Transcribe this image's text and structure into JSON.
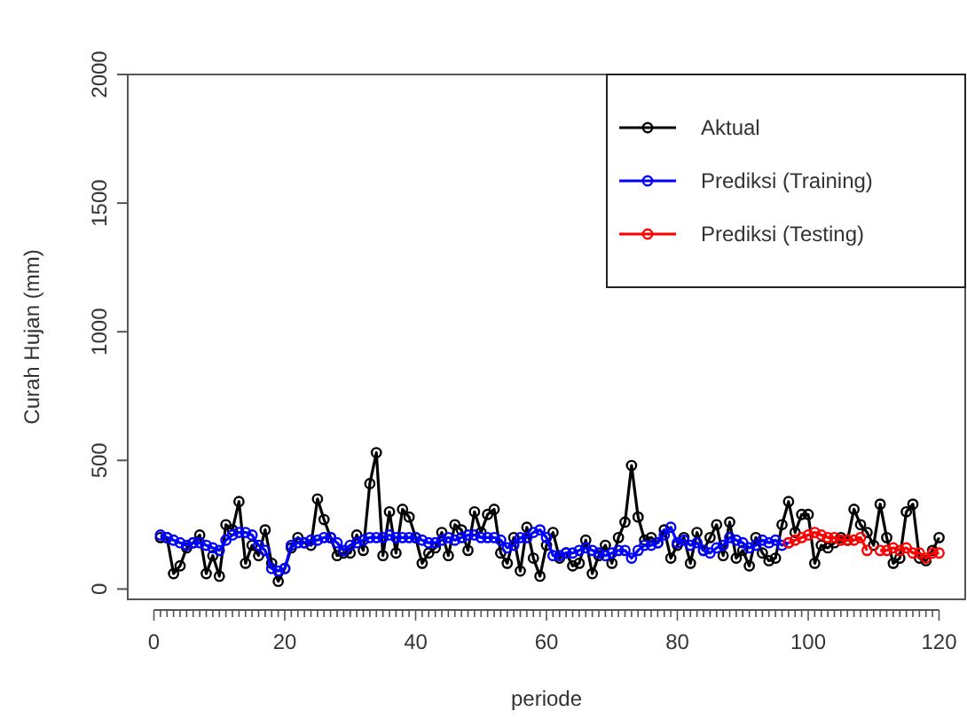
{
  "chart_data": {
    "type": "line",
    "xlabel": "periode",
    "ylabel": "Curah Hujan (mm)",
    "xlim": [
      -4,
      124
    ],
    "ylim": [
      -40,
      2000
    ],
    "yticks": [
      0,
      500,
      1000,
      1500,
      2000
    ],
    "xticks": [
      0,
      {
        "value": 1,
        "label": null
      },
      {
        "value": 2,
        "label": null
      },
      {
        "value": 3,
        "label": null
      },
      {
        "value": 4,
        "label": null
      },
      {
        "value": 5,
        "label": null
      },
      {
        "value": 6,
        "label": null
      },
      {
        "value": 7,
        "label": null
      },
      {
        "value": 8,
        "label": null
      },
      {
        "value": 9,
        "label": null
      },
      {
        "value": 10,
        "label": null
      },
      {
        "value": 11,
        "label": null
      },
      {
        "value": 12,
        "label": null
      },
      {
        "value": 13,
        "label": null
      },
      {
        "value": 14,
        "label": null
      },
      {
        "value": 15,
        "label": null
      },
      {
        "value": 16,
        "label": null
      },
      {
        "value": 17,
        "label": null
      },
      {
        "value": 18,
        "label": null
      },
      {
        "value": 19,
        "label": null
      },
      20,
      {
        "value": 21,
        "label": null
      },
      {
        "value": 22,
        "label": null
      },
      {
        "value": 23,
        "label": null
      },
      {
        "value": 24,
        "label": null
      },
      {
        "value": 25,
        "label": null
      },
      {
        "value": 26,
        "label": null
      },
      {
        "value": 27,
        "label": null
      },
      {
        "value": 28,
        "label": null
      },
      {
        "value": 29,
        "label": null
      },
      {
        "value": 30,
        "label": null
      },
      {
        "value": 31,
        "label": null
      },
      {
        "value": 32,
        "label": null
      },
      {
        "value": 33,
        "label": null
      },
      {
        "value": 34,
        "label": null
      },
      {
        "value": 35,
        "label": null
      },
      {
        "value": 36,
        "label": null
      },
      {
        "value": 37,
        "label": null
      },
      {
        "value": 38,
        "label": null
      },
      {
        "value": 39,
        "label": null
      },
      40,
      {
        "value": 41,
        "label": null
      },
      {
        "value": 42,
        "label": null
      },
      {
        "value": 43,
        "label": null
      },
      {
        "value": 44,
        "label": null
      },
      {
        "value": 45,
        "label": null
      },
      {
        "value": 46,
        "label": null
      },
      {
        "value": 47,
        "label": null
      },
      {
        "value": 48,
        "label": null
      },
      {
        "value": 49,
        "label": null
      },
      {
        "value": 50,
        "label": null
      },
      {
        "value": 51,
        "label": null
      },
      {
        "value": 52,
        "label": null
      },
      {
        "value": 53,
        "label": null
      },
      {
        "value": 54,
        "label": null
      },
      {
        "value": 55,
        "label": null
      },
      {
        "value": 56,
        "label": null
      },
      {
        "value": 57,
        "label": null
      },
      {
        "value": 58,
        "label": null
      },
      {
        "value": 59,
        "label": null
      },
      60,
      {
        "value": 61,
        "label": null
      },
      {
        "value": 62,
        "label": null
      },
      {
        "value": 63,
        "label": null
      },
      {
        "value": 64,
        "label": null
      },
      {
        "value": 65,
        "label": null
      },
      {
        "value": 66,
        "label": null
      },
      {
        "value": 67,
        "label": null
      },
      {
        "value": 68,
        "label": null
      },
      {
        "value": 69,
        "label": null
      },
      {
        "value": 70,
        "label": null
      },
      {
        "value": 71,
        "label": null
      },
      {
        "value": 72,
        "label": null
      },
      {
        "value": 73,
        "label": null
      },
      {
        "value": 74,
        "label": null
      },
      {
        "value": 75,
        "label": null
      },
      {
        "value": 76,
        "label": null
      },
      {
        "value": 77,
        "label": null
      },
      {
        "value": 78,
        "label": null
      },
      {
        "value": 79,
        "label": null
      },
      80,
      {
        "value": 81,
        "label": null
      },
      {
        "value": 82,
        "label": null
      },
      {
        "value": 83,
        "label": null
      },
      {
        "value": 84,
        "label": null
      },
      {
        "value": 85,
        "label": null
      },
      {
        "value": 86,
        "label": null
      },
      {
        "value": 87,
        "label": null
      },
      {
        "value": 88,
        "label": null
      },
      {
        "value": 89,
        "label": null
      },
      {
        "value": 90,
        "label": null
      },
      {
        "value": 91,
        "label": null
      },
      {
        "value": 92,
        "label": null
      },
      {
        "value": 93,
        "label": null
      },
      {
        "value": 94,
        "label": null
      },
      {
        "value": 95,
        "label": null
      },
      {
        "value": 96,
        "label": null
      },
      {
        "value": 97,
        "label": null
      },
      {
        "value": 98,
        "label": null
      },
      {
        "value": 99,
        "label": null
      },
      100,
      {
        "value": 101,
        "label": null
      },
      {
        "value": 102,
        "label": null
      },
      {
        "value": 103,
        "label": null
      },
      {
        "value": 104,
        "label": null
      },
      {
        "value": 105,
        "label": null
      },
      {
        "value": 106,
        "label": null
      },
      {
        "value": 107,
        "label": null
      },
      {
        "value": 108,
        "label": null
      },
      {
        "value": 109,
        "label": null
      },
      {
        "value": 110,
        "label": null
      },
      {
        "value": 111,
        "label": null
      },
      {
        "value": 112,
        "label": null
      },
      {
        "value": 113,
        "label": null
      },
      {
        "value": 114,
        "label": null
      },
      {
        "value": 115,
        "label": null
      },
      {
        "value": 116,
        "label": null
      },
      {
        "value": 117,
        "label": null
      },
      {
        "value": 118,
        "label": null
      },
      {
        "value": 119,
        "label": null
      },
      120
    ],
    "x": [
      1,
      2,
      3,
      4,
      5,
      6,
      7,
      8,
      9,
      10,
      11,
      12,
      13,
      14,
      15,
      16,
      17,
      18,
      19,
      20,
      21,
      22,
      23,
      24,
      25,
      26,
      27,
      28,
      29,
      30,
      31,
      32,
      33,
      34,
      35,
      36,
      37,
      38,
      39,
      40,
      41,
      42,
      43,
      44,
      45,
      46,
      47,
      48,
      49,
      50,
      51,
      52,
      53,
      54,
      55,
      56,
      57,
      58,
      59,
      60,
      61,
      62,
      63,
      64,
      65,
      66,
      67,
      68,
      69,
      70,
      71,
      72,
      73,
      74,
      75,
      76,
      77,
      78,
      79,
      80,
      81,
      82,
      83,
      84,
      85,
      86,
      87,
      88,
      89,
      90,
      91,
      92,
      93,
      94,
      95,
      96,
      97,
      98,
      99,
      100,
      101,
      102,
      103,
      104,
      105,
      106,
      107,
      108,
      109,
      110,
      111,
      112,
      113,
      114,
      115,
      116,
      117,
      118,
      119,
      120
    ],
    "marker": "circle",
    "line_style": "solid",
    "legend": "top right",
    "grid": false,
    "series": [
      {
        "name": "Aktual",
        "color": "#000000",
        "values": [
          200,
          200,
          60,
          90,
          160,
          180,
          210,
          60,
          130,
          50,
          250,
          230,
          340,
          100,
          170,
          130,
          230,
          100,
          30,
          80,
          160,
          200,
          180,
          170,
          350,
          270,
          200,
          130,
          140,
          140,
          210,
          150,
          410,
          530,
          130,
          300,
          140,
          310,
          280,
          200,
          100,
          140,
          160,
          220,
          130,
          250,
          230,
          150,
          300,
          220,
          290,
          310,
          140,
          100,
          200,
          70,
          240,
          120,
          50,
          170,
          220,
          120,
          140,
          90,
          100,
          190,
          60,
          130,
          170,
          100,
          200,
          260,
          480,
          280,
          190,
          200,
          180,
          230,
          120,
          170,
          200,
          100,
          220,
          150,
          200,
          250,
          130,
          260,
          120,
          150,
          90,
          200,
          140,
          110,
          120,
          250,
          340,
          220,
          290,
          290,
          100,
          170,
          160,
          180,
          200,
          190,
          310,
          250,
          220,
          170,
          330,
          200,
          100,
          120,
          300,
          330,
          120,
          110,
          150,
          200
        ]
      },
      {
        "name": "Prediksi (Training)",
        "color": "#0000ff",
        "values": [
          210,
          200,
          190,
          180,
          170,
          180,
          180,
          170,
          160,
          150,
          190,
          210,
          220,
          220,
          210,
          170,
          150,
          80,
          70,
          80,
          170,
          180,
          180,
          190,
          190,
          200,
          200,
          180,
          150,
          170,
          180,
          190,
          200,
          200,
          200,
          210,
          200,
          200,
          200,
          200,
          190,
          180,
          180,
          190,
          200,
          190,
          200,
          210,
          210,
          200,
          200,
          200,
          190,
          160,
          170,
          200,
          200,
          220,
          230,
          200,
          130,
          130,
          140,
          140,
          150,
          160,
          150,
          140,
          130,
          140,
          150,
          150,
          120,
          150,
          170,
          170,
          180,
          210,
          240,
          180,
          190,
          170,
          180,
          150,
          140,
          160,
          170,
          200,
          190,
          180,
          160,
          170,
          190,
          180,
          190,
          170,
          180,
          null,
          null,
          null,
          null,
          null,
          null,
          null,
          null,
          null,
          null,
          null,
          null,
          null,
          null,
          null,
          null,
          null,
          null,
          null,
          null,
          null,
          null,
          null
        ]
      },
      {
        "name": "Prediksi (Testing)",
        "color": "#ff0000",
        "values": [
          null,
          null,
          null,
          null,
          null,
          null,
          null,
          null,
          null,
          null,
          null,
          null,
          null,
          null,
          null,
          null,
          null,
          null,
          null,
          null,
          null,
          null,
          null,
          null,
          null,
          null,
          null,
          null,
          null,
          null,
          null,
          null,
          null,
          null,
          null,
          null,
          null,
          null,
          null,
          null,
          null,
          null,
          null,
          null,
          null,
          null,
          null,
          null,
          null,
          null,
          null,
          null,
          null,
          null,
          null,
          null,
          null,
          null,
          null,
          null,
          null,
          null,
          null,
          null,
          null,
          null,
          null,
          null,
          null,
          null,
          null,
          null,
          null,
          null,
          null,
          null,
          null,
          null,
          null,
          null,
          null,
          null,
          null,
          null,
          null,
          null,
          null,
          null,
          null,
          null,
          null,
          null,
          null,
          null,
          null,
          null,
          180,
          190,
          200,
          210,
          220,
          210,
          200,
          200,
          190,
          190,
          190,
          200,
          150,
          null,
          150,
          150,
          160,
          150,
          160,
          140,
          140,
          120,
          140,
          140
        ]
      }
    ]
  }
}
